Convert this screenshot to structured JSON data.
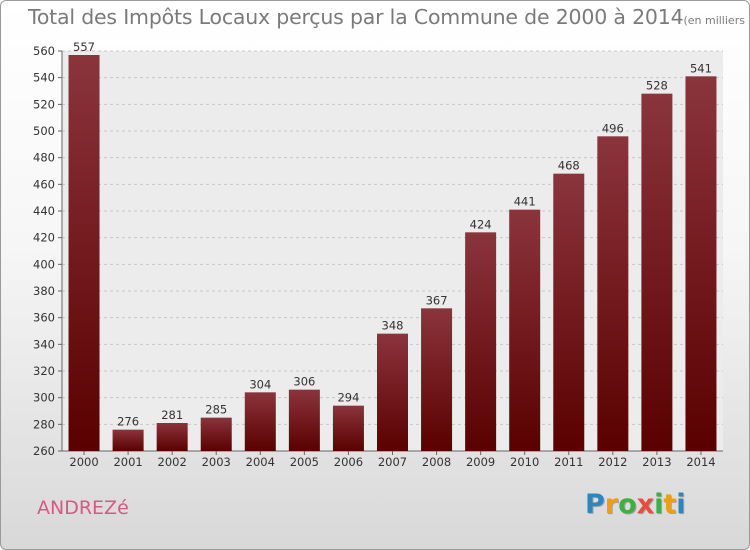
{
  "chart_data": {
    "type": "bar",
    "title": "Total des Impôts Locaux perçus par la Commune de 2000 à 2014",
    "unit_label": "(en milliers d'€)",
    "categories": [
      "2000",
      "2001",
      "2002",
      "2003",
      "2004",
      "2005",
      "2006",
      "2007",
      "2008",
      "2009",
      "2010",
      "2011",
      "2012",
      "2013",
      "2014"
    ],
    "values": [
      557,
      276,
      281,
      285,
      304,
      306,
      294,
      348,
      367,
      424,
      441,
      468,
      496,
      528,
      541
    ],
    "ylim": [
      260,
      560
    ],
    "yticks": [
      260,
      280,
      300,
      320,
      340,
      360,
      380,
      400,
      420,
      440,
      460,
      480,
      500,
      520,
      540,
      560
    ],
    "xlabel": "",
    "ylabel": "",
    "grid": true,
    "bar_color_top": "#8a343c",
    "bar_color_bottom": "#5a0000"
  },
  "commune_name": "ANDREZé",
  "brand": {
    "letters": [
      "P",
      "r",
      "o",
      "x",
      "i",
      "t",
      "i"
    ],
    "colors": [
      "#2e86c1",
      "#f39c12",
      "#3cb043",
      "#e74c3c",
      "#3cb043",
      "#f39c12",
      "#2e86c1"
    ]
  }
}
